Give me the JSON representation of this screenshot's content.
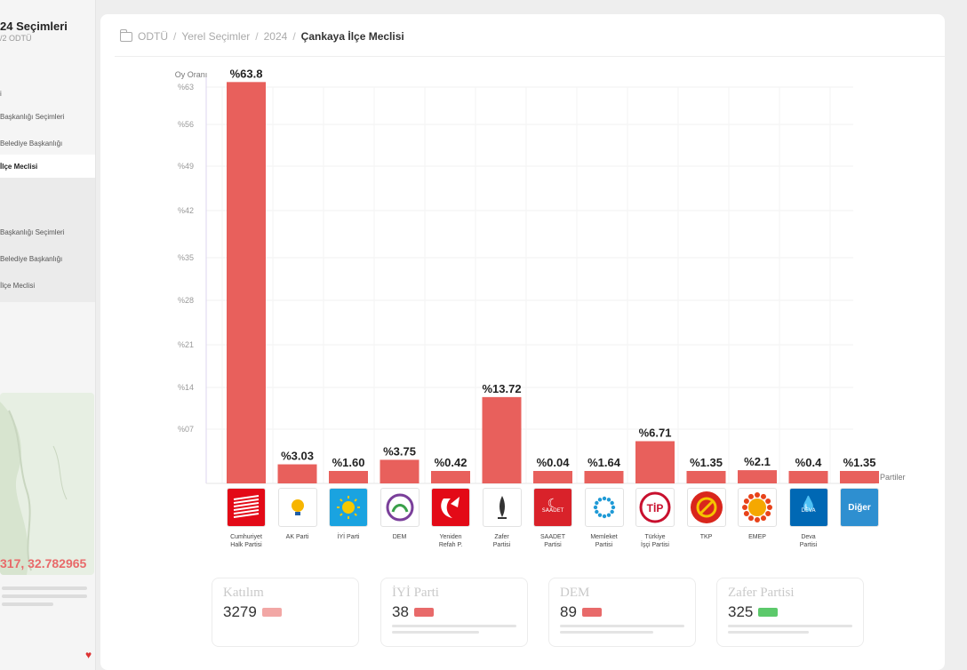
{
  "sidebar": {
    "title": "24 Seçimleri",
    "subtitle": "/2 ODTÜ",
    "items": [
      {
        "label": "i",
        "active": false
      },
      {
        "label": "Başkanlığı Seçimleri",
        "active": false
      },
      {
        "label": "Belediye Başkanlığı",
        "active": false
      },
      {
        "label": "İlçe Meclisi",
        "active": true
      },
      {
        "label": "",
        "active": false
      },
      {
        "label": "Başkanlığı Seçimleri",
        "active": false
      },
      {
        "label": "Belediye Başkanlığı",
        "active": false
      },
      {
        "label": "İlçe Meclisi",
        "active": false
      }
    ],
    "coordinates": "317, 32.782965",
    "heart_icon": "heart-icon"
  },
  "breadcrumb": {
    "icon": "folder-icon",
    "items": [
      "ODTÜ",
      "Yerel Seçimler",
      "2024"
    ],
    "current": "Çankaya İlçe Meclisi"
  },
  "chart_data": {
    "type": "bar",
    "ylabel": "Oy Oranı",
    "xlabel": "Partiler",
    "ylim": [
      0,
      63
    ],
    "yticks": [
      "%63",
      "%56",
      "%49",
      "%42",
      "%35",
      "%28",
      "%21",
      "%14",
      "%07"
    ],
    "categories": [
      "Cumhuriyet Halk Partisi",
      "AK Parti",
      "İYİ Parti",
      "DEM",
      "Yeniden Refah P.",
      "Zafer Partisi",
      "SAADET Partisi",
      "Memleket Partisi",
      "Türkiye İşçi Partisi",
      "TKP",
      "EMEP",
      "Deva Partisi",
      "Diğer"
    ],
    "values": [
      63.8,
      3.03,
      1.6,
      3.75,
      0.42,
      13.72,
      0.04,
      1.64,
      6.71,
      1.35,
      2.1,
      0.4,
      1.35
    ],
    "value_labels": [
      "%63.8",
      "%3.03",
      "%1.60",
      "%3.75",
      "%0.42",
      "%13.72",
      "%0.04",
      "%1.64",
      "%6.71",
      "%1.35",
      "%2.1",
      "%0.4",
      "%1.35"
    ],
    "bar_color": "#e8605c",
    "grid": true
  },
  "logos": [
    {
      "icon": "chp-logo-icon",
      "bg": "#e30a17",
      "text": ""
    },
    {
      "icon": "ak-parti-logo-icon",
      "bg": "#ffffff",
      "text": ""
    },
    {
      "icon": "iyi-parti-logo-icon",
      "bg": "#1aa3e0",
      "text": ""
    },
    {
      "icon": "dem-logo-icon",
      "bg": "#ffffff",
      "text": ""
    },
    {
      "icon": "yeniden-refah-logo-icon",
      "bg": "#e30a17",
      "text": ""
    },
    {
      "icon": "zafer-partisi-logo-icon",
      "bg": "#ffffff",
      "text": ""
    },
    {
      "icon": "saadet-logo-icon",
      "bg": "#d9222a",
      "text": "SAADET"
    },
    {
      "icon": "memleket-logo-icon",
      "bg": "#ffffff",
      "text": ""
    },
    {
      "icon": "tip-logo-icon",
      "bg": "#ffffff",
      "text": "TİP"
    },
    {
      "icon": "tkp-logo-icon",
      "bg": "#ffffff",
      "text": ""
    },
    {
      "icon": "emep-logo-icon",
      "bg": "#ffffff",
      "text": ""
    },
    {
      "icon": "deva-logo-icon",
      "bg": "#0068b4",
      "text": "DEVA"
    },
    {
      "icon": "diger-logo-icon",
      "bg": "#2e8fd0",
      "text": "Diğer"
    }
  ],
  "party_names": [
    [
      "Cumhuriyet",
      "Halk Partisi"
    ],
    [
      "AK Parti",
      ""
    ],
    [
      "İYİ Parti",
      ""
    ],
    [
      "DEM",
      ""
    ],
    [
      "Yeniden",
      "Refah P."
    ],
    [
      "Zafer",
      "Partisi"
    ],
    [
      "SAADET",
      "Partisi"
    ],
    [
      "Memleket",
      "Partisi"
    ],
    [
      "Türkiye",
      "İşçi Partisi"
    ],
    [
      "TKP",
      ""
    ],
    [
      "EMEP",
      ""
    ],
    [
      "Deva",
      "Partisi"
    ],
    [
      "",
      ""
    ]
  ],
  "cards": [
    {
      "title": "Katılım",
      "value": "3279",
      "badge_color": "#f2a7a5"
    },
    {
      "title": "İYİ Parti",
      "value": "38",
      "badge_color": "#e86a6a"
    },
    {
      "title": "DEM",
      "value": "89",
      "badge_color": "#e86a6a"
    },
    {
      "title": "Zafer Partisi",
      "value": "325",
      "badge_color": "#5cc96b"
    }
  ]
}
